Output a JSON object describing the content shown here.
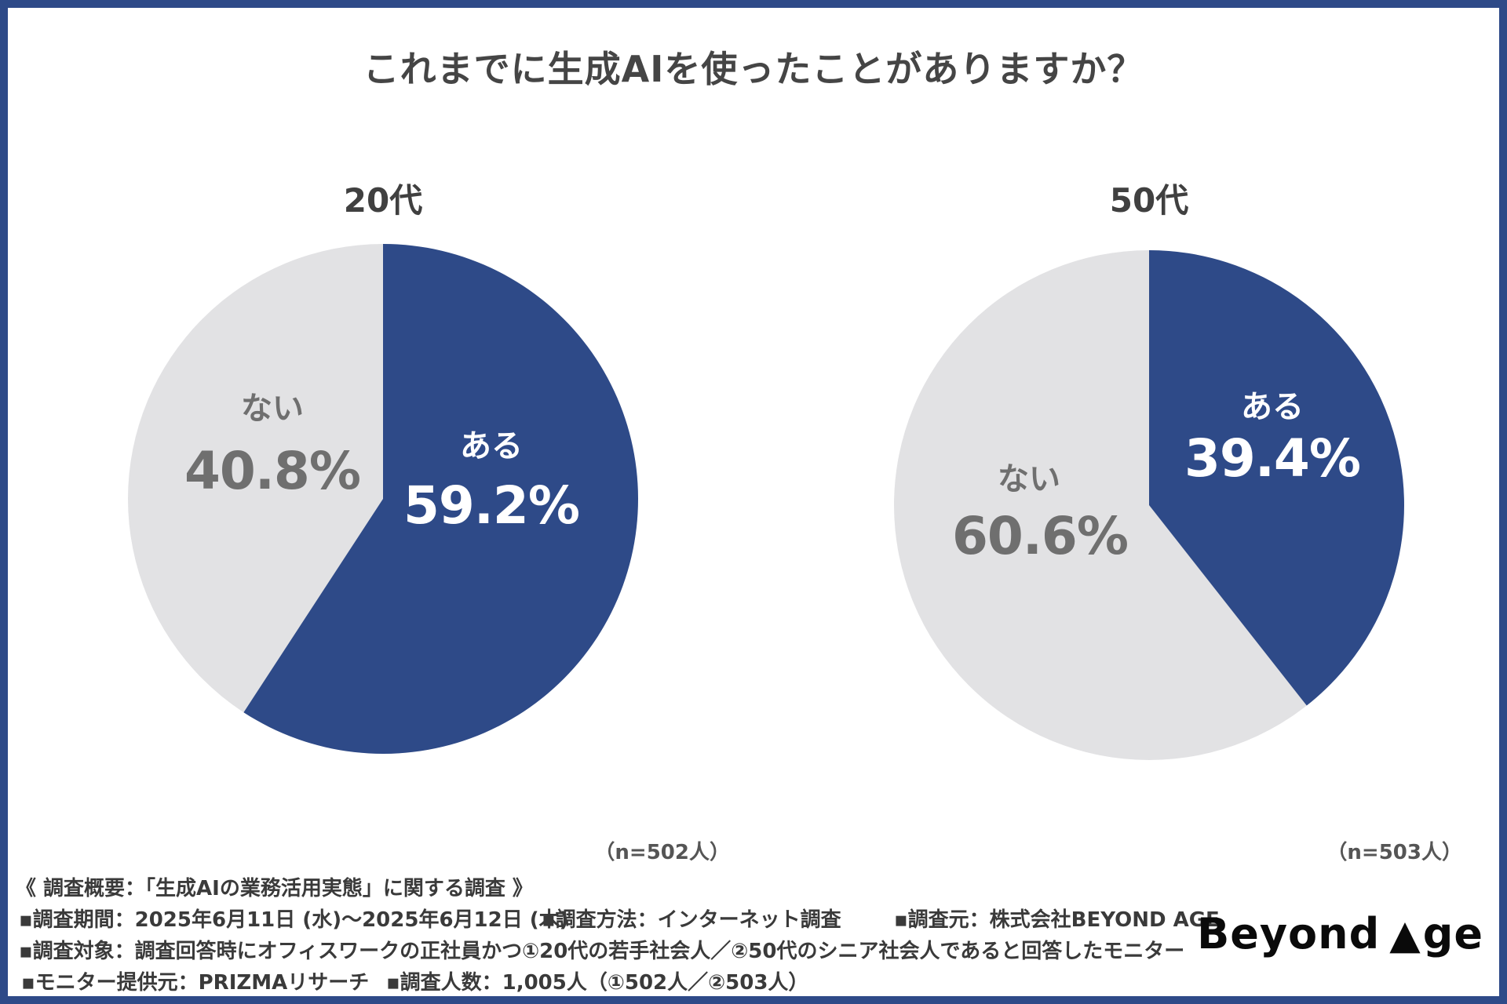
{
  "title": "これまでに生成AIを使ったことがありますか？",
  "colors": {
    "accent_blue": "#2e4a88",
    "slice_gray": "#e2e2e4",
    "gray_label_text": "#6f6f6f",
    "white_label_text": "#ffffff",
    "heading_text": "#454545",
    "footer_text": "#3a3a3a",
    "border": "#2e4a88",
    "logo_text": "#0a0a0a"
  },
  "chart_data": [
    {
      "type": "pie",
      "title": "20代",
      "n_label": "（n=502人）",
      "start_angle_deg": 0,
      "direction": "clockwise",
      "legend_position": "labels-inside",
      "slices": [
        {
          "label": "ある",
          "value": 59.2,
          "display": "59.2%",
          "color": "#2e4a88",
          "text_color": "#ffffff"
        },
        {
          "label": "ない",
          "value": 40.8,
          "display": "40.8%",
          "color": "#e2e2e4",
          "text_color": "#6f6f6f"
        }
      ]
    },
    {
      "type": "pie",
      "title": "50代",
      "n_label": "（n=503人）",
      "start_angle_deg": 0,
      "direction": "clockwise",
      "legend_position": "labels-inside",
      "slices": [
        {
          "label": "ある",
          "value": 39.4,
          "display": "39.4%",
          "color": "#2e4a88",
          "text_color": "#ffffff"
        },
        {
          "label": "ない",
          "value": 60.6,
          "display": "60.6%",
          "color": "#e2e2e4",
          "text_color": "#6f6f6f"
        }
      ]
    }
  ],
  "survey_overview": {
    "heading": "《 調査概要：「生成AIの業務活用実態」に関する調査 》",
    "period": "▪調査期間：2025年6月11日 (水)～2025年6月12日 (木)",
    "method": "▪調査方法：インターネット調査",
    "source": "▪調査元：株式会社BEYOND AGE",
    "target": "▪調査対象：調査回答時にオフィスワークの正社員かつ①20代の若手社会人／②50代のシニア社会人であると回答したモニター",
    "monitor": "▪モニター提供元：PRIZMAリサーチ",
    "count": "▪調査人数：1,005人（①502人／②503人）"
  },
  "logo": {
    "prefix": "Beyond",
    "triangle": "▲",
    "suffix": "ge"
  }
}
